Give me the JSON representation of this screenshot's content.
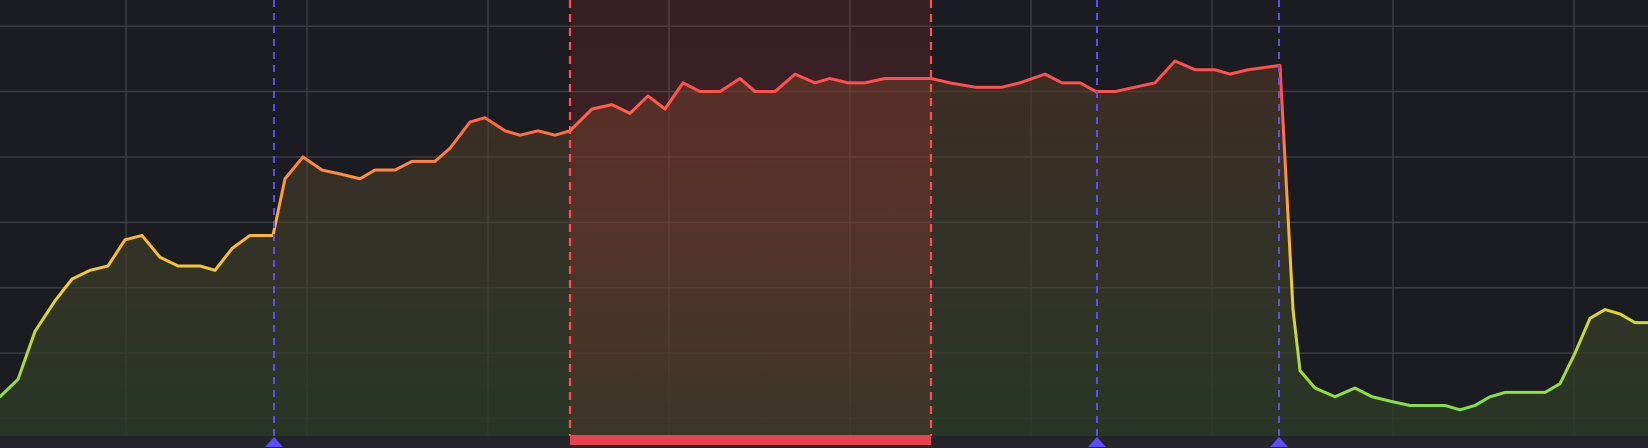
{
  "chart_data": {
    "type": "line",
    "title": "",
    "xlabel": "",
    "ylabel": "",
    "xlim": [
      0,
      1648
    ],
    "ylim": [
      0,
      100
    ],
    "grid": true,
    "x_gridlines": [
      126,
      307,
      488,
      669,
      850,
      1031,
      1212,
      1393,
      1574
    ],
    "y_gridlines": [
      4,
      19,
      34,
      49,
      64,
      79,
      94
    ],
    "series": [
      {
        "color_scale": [
          "#7be04a",
          "#f2d230",
          "#ff9a3c",
          "#ff4f4f"
        ],
        "points": [
          [
            0,
            9
          ],
          [
            18,
            13
          ],
          [
            35,
            24
          ],
          [
            55,
            31
          ],
          [
            72,
            36
          ],
          [
            90,
            38
          ],
          [
            108,
            39
          ],
          [
            125,
            45
          ],
          [
            142,
            46
          ],
          [
            160,
            41
          ],
          [
            178,
            39
          ],
          [
            200,
            39
          ],
          [
            215,
            38
          ],
          [
            232,
            43
          ],
          [
            250,
            46
          ],
          [
            273,
            46
          ],
          [
            285,
            59
          ],
          [
            303,
            64
          ],
          [
            322,
            61
          ],
          [
            342,
            60
          ],
          [
            360,
            59
          ],
          [
            375,
            61
          ],
          [
            395,
            61
          ],
          [
            412,
            63
          ],
          [
            435,
            63
          ],
          [
            450,
            66
          ],
          [
            470,
            72
          ],
          [
            485,
            73
          ],
          [
            505,
            70
          ],
          [
            520,
            69
          ],
          [
            538,
            70
          ],
          [
            555,
            69
          ],
          [
            570,
            70
          ],
          [
            592,
            75
          ],
          [
            612,
            76
          ],
          [
            630,
            74
          ],
          [
            648,
            78
          ],
          [
            665,
            75
          ],
          [
            683,
            81
          ],
          [
            700,
            79
          ],
          [
            720,
            79
          ],
          [
            740,
            82
          ],
          [
            755,
            79
          ],
          [
            775,
            79
          ],
          [
            795,
            83
          ],
          [
            815,
            81
          ],
          [
            830,
            82
          ],
          [
            848,
            81
          ],
          [
            865,
            81
          ],
          [
            885,
            82
          ],
          [
            905,
            82
          ],
          [
            931,
            82
          ],
          [
            950,
            81
          ],
          [
            975,
            80
          ],
          [
            1002,
            80
          ],
          [
            1020,
            81
          ],
          [
            1045,
            83
          ],
          [
            1062,
            81
          ],
          [
            1080,
            81
          ],
          [
            1096,
            79
          ],
          [
            1115,
            79
          ],
          [
            1135,
            80
          ],
          [
            1155,
            81
          ],
          [
            1175,
            86
          ],
          [
            1195,
            84
          ],
          [
            1215,
            84
          ],
          [
            1230,
            83
          ],
          [
            1248,
            84
          ],
          [
            1280,
            85
          ],
          [
            1293,
            29
          ],
          [
            1300,
            15
          ],
          [
            1315,
            11
          ],
          [
            1335,
            9
          ],
          [
            1355,
            11
          ],
          [
            1372,
            9
          ],
          [
            1390,
            8
          ],
          [
            1410,
            7
          ],
          [
            1425,
            7
          ],
          [
            1445,
            7
          ],
          [
            1460,
            6
          ],
          [
            1475,
            7
          ],
          [
            1490,
            9
          ],
          [
            1505,
            10
          ],
          [
            1525,
            10
          ],
          [
            1545,
            10
          ],
          [
            1560,
            12
          ],
          [
            1575,
            19
          ],
          [
            1590,
            27
          ],
          [
            1605,
            29
          ],
          [
            1620,
            28
          ],
          [
            1635,
            26
          ],
          [
            1648,
            26
          ]
        ]
      }
    ],
    "markers": [
      {
        "x": 274,
        "color": "#5b4ff0",
        "style": "dashed",
        "triangle": true
      },
      {
        "x": 1097,
        "color": "#5b4ff0",
        "style": "dashed",
        "triangle": true
      },
      {
        "x": 1279,
        "color": "#5b4ff0",
        "style": "dashed",
        "triangle": true
      }
    ],
    "highlight_region": {
      "x0": 570,
      "x1": 931,
      "line_color": "#ff4f4f",
      "fill_color": "#ff3b3b",
      "bar_color": "#e8424f"
    }
  }
}
